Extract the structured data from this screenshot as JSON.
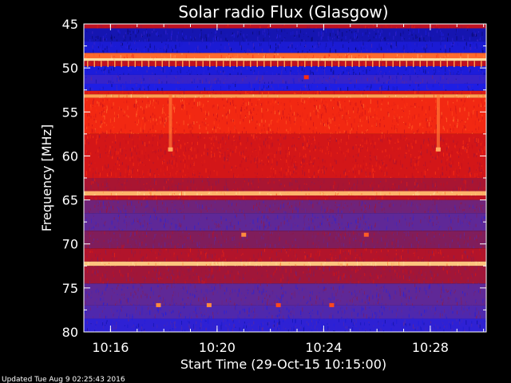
{
  "chart_data": {
    "type": "heatmap",
    "title": "Solar radio Flux (Glasgow)",
    "ylabel": "Frequency [MHz]",
    "xlabel": "Start Time (29-Oct-15 10:15:00)",
    "ylim": [
      45,
      80
    ],
    "y_inverted": true,
    "xlim_minutes_after_start": [
      0,
      15.1
    ],
    "y_ticks": [
      "45",
      "50",
      "55",
      "60",
      "65",
      "70",
      "75",
      "80"
    ],
    "x_ticks": [
      {
        "minute": 1,
        "label": "10:16"
      },
      {
        "minute": 5,
        "label": "10:20"
      },
      {
        "minute": 9,
        "label": "10:24"
      },
      {
        "minute": 13,
        "label": "10:28"
      }
    ],
    "colormap": [
      "#0a0a6e",
      "#1e1ee6",
      "#5a2aa0",
      "#8a1a4a",
      "#c8101a",
      "#ff3010",
      "#ff9040",
      "#ffe0a0"
    ],
    "horizontal_bands": [
      {
        "from": 45.0,
        "to": 45.5,
        "level": 0.55
      },
      {
        "from": 45.5,
        "to": 47.0,
        "level": 0.08
      },
      {
        "from": 47.0,
        "to": 48.3,
        "level": 0.12
      },
      {
        "from": 48.3,
        "to": 48.9,
        "level": 0.8
      },
      {
        "from": 48.9,
        "to": 49.2,
        "level": 1.0
      },
      {
        "from": 49.2,
        "to": 49.8,
        "level": 0.55
      },
      {
        "from": 49.8,
        "to": 50.8,
        "level": 0.13
      },
      {
        "from": 50.8,
        "to": 51.8,
        "level": 0.2
      },
      {
        "from": 51.8,
        "to": 52.6,
        "level": 0.14
      },
      {
        "from": 52.6,
        "to": 53.0,
        "level": 0.62
      },
      {
        "from": 53.0,
        "to": 53.4,
        "level": 0.88
      },
      {
        "from": 53.4,
        "to": 57.5,
        "level": 0.68
      },
      {
        "from": 57.5,
        "to": 62.5,
        "level": 0.6
      },
      {
        "from": 62.5,
        "to": 64.0,
        "level": 0.5
      },
      {
        "from": 64.0,
        "to": 64.5,
        "level": 0.92
      },
      {
        "from": 64.5,
        "to": 65.0,
        "level": 0.55
      },
      {
        "from": 65.0,
        "to": 66.5,
        "level": 0.35
      },
      {
        "from": 66.5,
        "to": 68.5,
        "level": 0.3
      },
      {
        "from": 68.5,
        "to": 70.5,
        "level": 0.4
      },
      {
        "from": 70.5,
        "to": 72.0,
        "level": 0.52
      },
      {
        "from": 72.0,
        "to": 72.5,
        "level": 0.95
      },
      {
        "from": 72.5,
        "to": 74.5,
        "level": 0.48
      },
      {
        "from": 74.5,
        "to": 77.0,
        "level": 0.3
      },
      {
        "from": 77.0,
        "to": 78.5,
        "level": 0.26
      },
      {
        "from": 78.5,
        "to": 80.0,
        "level": 0.18
      }
    ],
    "vertical_features": [
      {
        "minute": 3.25,
        "from": 53.0,
        "to": 59.5,
        "level": 0.82
      },
      {
        "minute": 13.3,
        "from": 53.0,
        "to": 59.5,
        "level": 0.82
      }
    ],
    "bursts": [
      {
        "minute": 3.25,
        "freq": 59.3,
        "level": 0.9
      },
      {
        "minute": 13.3,
        "freq": 59.3,
        "level": 0.9
      },
      {
        "minute": 8.35,
        "freq": 51.1,
        "level": 0.7
      },
      {
        "minute": 6.0,
        "freq": 69.0,
        "level": 0.85
      },
      {
        "minute": 10.6,
        "freq": 69.0,
        "level": 0.78
      },
      {
        "minute": 2.8,
        "freq": 77.0,
        "level": 0.85
      },
      {
        "minute": 4.7,
        "freq": 77.0,
        "level": 0.85
      },
      {
        "minute": 7.3,
        "freq": 77.0,
        "level": 0.75
      },
      {
        "minute": 9.3,
        "freq": 77.0,
        "level": 0.75
      }
    ]
  },
  "footer": {
    "updated": "Updated Tue Aug  9 02:25:43 2016"
  }
}
